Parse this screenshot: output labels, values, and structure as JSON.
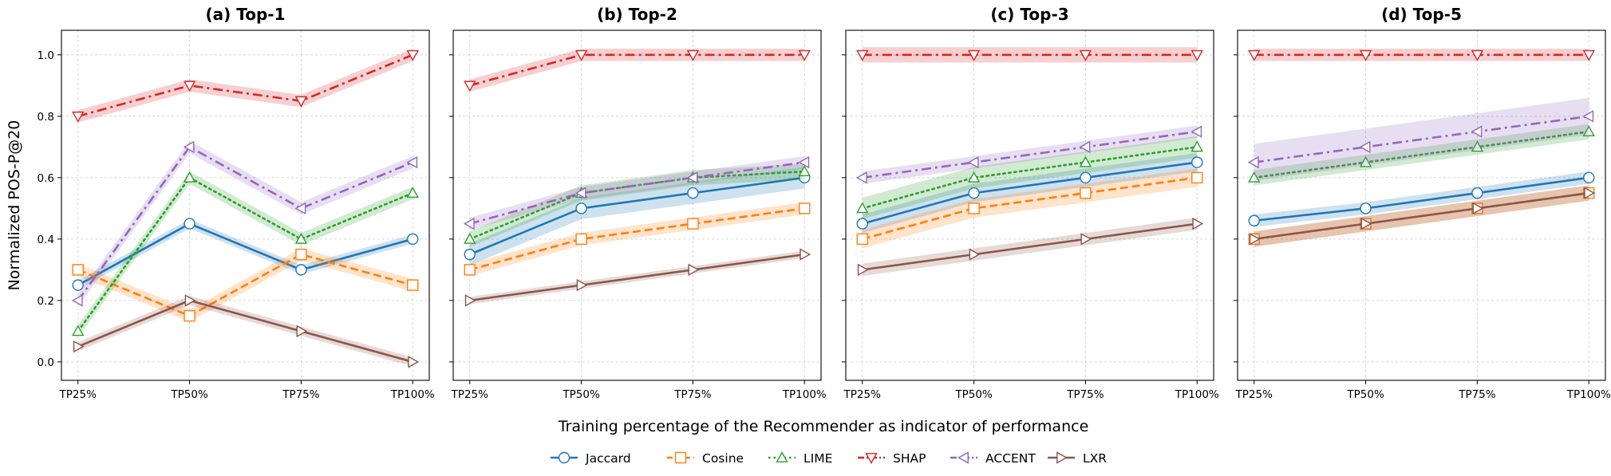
{
  "chart_data": {
    "type": "line",
    "ylabel": "Normalized POS-P@20",
    "xlabel": "Training percentage of the Recommender as indicator of performance",
    "x_categories": [
      "TP25%",
      "TP50%",
      "TP75%",
      "TP100%"
    ],
    "y_ticks": [
      "0.0",
      "0.2",
      "0.4",
      "0.6",
      "0.8",
      "1.0"
    ],
    "ylim": [
      -0.06,
      1.08
    ],
    "grid": true,
    "shared_y": true,
    "legend_position": "bottom-center",
    "series_styles": [
      {
        "name": "Jaccard",
        "color": "#1f77b4",
        "line": "solid",
        "marker": "circle"
      },
      {
        "name": "Cosine",
        "color": "#ff7f0e",
        "line": "dashed",
        "marker": "square"
      },
      {
        "name": "LIME",
        "color": "#2ca02c",
        "line": "dotted",
        "marker": "triangle-up"
      },
      {
        "name": "SHAP",
        "color": "#d62728",
        "line": "dashdot",
        "marker": "triangle-down"
      },
      {
        "name": "ACCENT",
        "color": "#9467bd",
        "line": "dashdot",
        "marker": "triangle-left"
      },
      {
        "name": "LXR",
        "color": "#8c564b",
        "line": "solid",
        "marker": "triangle-right"
      }
    ],
    "panels": [
      {
        "title": "(a) Top-1",
        "series": [
          {
            "name": "Jaccard",
            "values": [
              0.25,
              0.45,
              0.3,
              0.4
            ],
            "band": 0.015
          },
          {
            "name": "Cosine",
            "values": [
              0.3,
              0.15,
              0.35,
              0.25
            ],
            "band": 0.02
          },
          {
            "name": "LIME",
            "values": [
              0.1,
              0.6,
              0.4,
              0.55
            ],
            "band": 0.02
          },
          {
            "name": "SHAP",
            "values": [
              0.8,
              0.9,
              0.85,
              1.0
            ],
            "band": 0.02
          },
          {
            "name": "ACCENT",
            "values": [
              0.2,
              0.7,
              0.5,
              0.65
            ],
            "band": 0.02
          },
          {
            "name": "LXR",
            "values": [
              0.05,
              0.2,
              0.1,
              0.0
            ],
            "band": 0.015
          }
        ]
      },
      {
        "title": "(b) Top-2",
        "series": [
          {
            "name": "Jaccard",
            "values": [
              0.35,
              0.5,
              0.55,
              0.6
            ],
            "band": 0.035
          },
          {
            "name": "Cosine",
            "values": [
              0.3,
              0.4,
              0.45,
              0.5
            ],
            "band": 0.02
          },
          {
            "name": "LIME",
            "values": [
              0.4,
              0.55,
              0.6,
              0.62
            ],
            "band": 0.025
          },
          {
            "name": "SHAP",
            "values": [
              0.9,
              1.0,
              1.0,
              1.0
            ],
            "band": 0.02
          },
          {
            "name": "ACCENT",
            "values": [
              0.45,
              0.55,
              0.6,
              0.65
            ],
            "band": 0.02
          },
          {
            "name": "LXR",
            "values": [
              0.2,
              0.25,
              0.3,
              0.35
            ],
            "band": 0.012
          }
        ]
      },
      {
        "title": "(c) Top-3",
        "series": [
          {
            "name": "Jaccard",
            "values": [
              0.45,
              0.55,
              0.6,
              0.65
            ],
            "band": 0.03
          },
          {
            "name": "Cosine",
            "values": [
              0.4,
              0.5,
              0.55,
              0.6
            ],
            "band": 0.03
          },
          {
            "name": "LIME",
            "values": [
              0.5,
              0.6,
              0.65,
              0.7
            ],
            "band": 0.035
          },
          {
            "name": "SHAP",
            "values": [
              1.0,
              1.0,
              1.0,
              1.0
            ],
            "band": 0.025
          },
          {
            "name": "ACCENT",
            "values": [
              0.6,
              0.65,
              0.7,
              0.75
            ],
            "band": 0.02
          },
          {
            "name": "LXR",
            "values": [
              0.3,
              0.35,
              0.4,
              0.45
            ],
            "band": 0.02
          }
        ]
      },
      {
        "title": "(d) Top-5",
        "series": [
          {
            "name": "Jaccard",
            "values": [
              0.46,
              0.5,
              0.55,
              0.6
            ],
            "band": 0.02
          },
          {
            "name": "Cosine",
            "values": [
              0.4,
              0.45,
              0.5,
              0.55
            ],
            "band": 0.025
          },
          {
            "name": "LIME",
            "values": [
              0.6,
              0.65,
              0.7,
              0.75
            ],
            "band": 0.025
          },
          {
            "name": "SHAP",
            "values": [
              1.0,
              1.0,
              1.0,
              1.0
            ],
            "band": 0.02
          },
          {
            "name": "ACCENT",
            "values": [
              0.65,
              0.7,
              0.75,
              0.8
            ],
            "band": 0.06
          },
          {
            "name": "LXR",
            "values": [
              0.4,
              0.45,
              0.5,
              0.55
            ],
            "band": 0.025
          }
        ]
      }
    ]
  }
}
